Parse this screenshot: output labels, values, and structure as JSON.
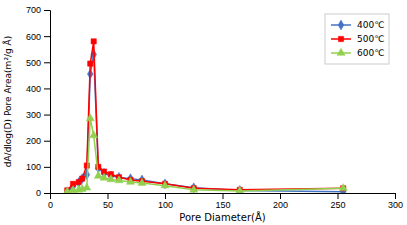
{
  "chart_data": {
    "type": "line",
    "xlabel": "Pore Diameter(Å)",
    "ylabel": "dA/dlog(D) Pore Area(m²/g Å)",
    "xlim": [
      0,
      300
    ],
    "ylim": [
      0,
      700
    ],
    "xticks": [
      0,
      50,
      100,
      150,
      200,
      250,
      300
    ],
    "yticks": [
      0,
      100,
      200,
      300,
      400,
      500,
      600,
      700
    ],
    "x": [
      15,
      20,
      25,
      28,
      32,
      35,
      38,
      42,
      47,
      53,
      60,
      70,
      80,
      100,
      125,
      165,
      255
    ],
    "series": [
      {
        "name": "400℃",
        "color": "#4472C4",
        "marker": "diamond",
        "values": [
          5,
          25,
          40,
          55,
          70,
          455,
          530,
          95,
          75,
          65,
          60,
          55,
          50,
          35,
          20,
          10,
          5
        ]
      },
      {
        "name": "500℃",
        "color": "#FF0000",
        "marker": "square",
        "values": [
          10,
          35,
          42,
          55,
          105,
          495,
          580,
          100,
          82,
          72,
          60,
          50,
          45,
          35,
          18,
          12,
          18
        ]
      },
      {
        "name": "600℃",
        "color": "#92D050",
        "marker": "triangle",
        "values": [
          5,
          10,
          12,
          15,
          20,
          285,
          220,
          65,
          58,
          52,
          48,
          42,
          38,
          28,
          12,
          8,
          18
        ]
      }
    ],
    "grid": false,
    "legend": "upper right"
  }
}
